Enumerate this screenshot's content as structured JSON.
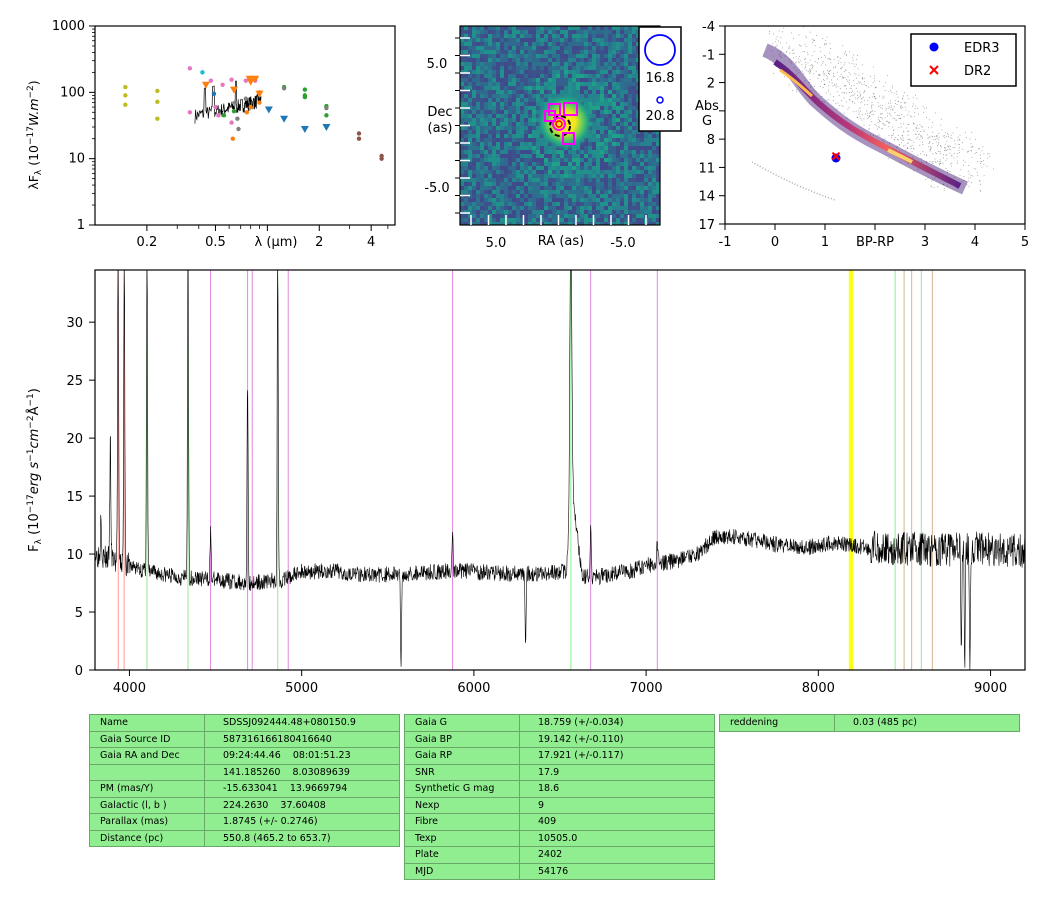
{
  "chart_data": [
    {
      "type": "scatter",
      "panel": "sed",
      "xlabel": "λ (μm)",
      "ylabel": "λF_λ (10^-17 W.m^-2)",
      "x_scale": "log",
      "y_scale": "log",
      "xlim": [
        0.1,
        5.5
      ],
      "ylim": [
        1,
        1000
      ],
      "x_ticks": [
        "0.2",
        "0.5",
        "2",
        "4"
      ],
      "y_ticks": [
        "1",
        "10",
        "100",
        "1000"
      ],
      "points": [
        {
          "x": 0.15,
          "y": 120,
          "c": "#bcbd22"
        },
        {
          "x": 0.15,
          "y": 90,
          "c": "#bcbd22"
        },
        {
          "x": 0.15,
          "y": 65,
          "c": "#bcbd22"
        },
        {
          "x": 0.23,
          "y": 105,
          "c": "#bcbd22"
        },
        {
          "x": 0.23,
          "y": 72,
          "c": "#bcbd22"
        },
        {
          "x": 0.23,
          "y": 40,
          "c": "#bcbd22"
        },
        {
          "x": 0.355,
          "y": 230,
          "c": "#e377c2"
        },
        {
          "x": 0.355,
          "y": 50,
          "c": "#e377c2"
        },
        {
          "x": 0.42,
          "y": 200,
          "c": "#17becf"
        },
        {
          "x": 0.47,
          "y": 150,
          "c": "#e377c2"
        },
        {
          "x": 0.49,
          "y": 95,
          "c": "#1f77b4"
        },
        {
          "x": 0.5,
          "y": 60,
          "c": "#e377c2"
        },
        {
          "x": 0.52,
          "y": 45,
          "c": "#e377c2"
        },
        {
          "x": 0.55,
          "y": 130,
          "c": "#e377c2"
        },
        {
          "x": 0.56,
          "y": 45,
          "c": "#2ca02c"
        },
        {
          "x": 0.62,
          "y": 155,
          "c": "#e377c2"
        },
        {
          "x": 0.62,
          "y": 35,
          "c": "#e377c2"
        },
        {
          "x": 0.63,
          "y": 20,
          "c": "#ff7f0e"
        },
        {
          "x": 0.64,
          "y": 52,
          "c": "#2ca02c"
        },
        {
          "x": 0.65,
          "y": 70,
          "c": "#7f7f7f"
        },
        {
          "x": 0.67,
          "y": 40,
          "c": "#7f7f7f"
        },
        {
          "x": 0.68,
          "y": 28,
          "c": "#7f7f7f"
        },
        {
          "x": 0.75,
          "y": 150,
          "c": "#e377c2"
        },
        {
          "x": 0.75,
          "y": 80,
          "c": "#7f7f7f"
        },
        {
          "x": 0.76,
          "y": 50,
          "c": "#ff7f0e"
        },
        {
          "x": 0.8,
          "y": 60,
          "c": "#ff7f0e"
        },
        {
          "x": 0.85,
          "y": 150,
          "c": "#e377c2"
        },
        {
          "x": 0.9,
          "y": 70,
          "c": "#ff7f0e"
        },
        {
          "x": 0.9,
          "y": 100,
          "c": "#ff7f0e"
        },
        {
          "x": 1.25,
          "y": 120,
          "c": "#2ca02c"
        },
        {
          "x": 1.25,
          "y": 115,
          "c": "#7f7f7f"
        },
        {
          "x": 1.65,
          "y": 110,
          "c": "#2ca02c"
        },
        {
          "x": 1.65,
          "y": 90,
          "c": "#2ca02c"
        },
        {
          "x": 1.65,
          "y": 85,
          "c": "#2ca02c"
        },
        {
          "x": 2.2,
          "y": 62,
          "c": "#2ca02c"
        },
        {
          "x": 2.2,
          "y": 58,
          "c": "#7f7f7f"
        },
        {
          "x": 2.2,
          "y": 45,
          "c": "#2ca02c"
        },
        {
          "x": 3.4,
          "y": 24,
          "c": "#8c564b"
        },
        {
          "x": 3.4,
          "y": 20,
          "c": "#8c564b"
        },
        {
          "x": 4.6,
          "y": 11,
          "c": "#8c564b"
        },
        {
          "x": 4.6,
          "y": 10,
          "c": "#8c564b"
        }
      ],
      "triangles": [
        {
          "x": 0.44,
          "y": 130,
          "c": "#ff7f0e"
        },
        {
          "x": 0.64,
          "y": 110,
          "c": "#ff7f0e"
        },
        {
          "x": 0.79,
          "y": 160,
          "c": "#ff7f0e"
        },
        {
          "x": 0.8,
          "y": 145,
          "c": "#ff7f0e"
        },
        {
          "x": 0.85,
          "y": 160,
          "c": "#ff7f0e"
        },
        {
          "x": 0.9,
          "y": 95,
          "c": "#ff7f0e"
        },
        {
          "x": 1.02,
          "y": 55,
          "c": "#1f77b4"
        },
        {
          "x": 1.25,
          "y": 40,
          "c": "#1f77b4"
        },
        {
          "x": 1.65,
          "y": 28,
          "c": "#1f77b4"
        },
        {
          "x": 2.2,
          "y": 30,
          "c": "#1f77b4"
        }
      ]
    },
    {
      "type": "heatmap",
      "panel": "image",
      "xlabel": "RA (as)",
      "ylabel": "Dec\n(as)",
      "x_ticks": [
        "5.0",
        "-5.0"
      ],
      "y_ticks": [
        "5.0",
        "-5.0"
      ],
      "legend_sizes": [
        "16.8",
        "20.8"
      ]
    },
    {
      "type": "scatter",
      "panel": "hr",
      "xlabel": "BP-RP",
      "ylabel": "Abs\nG",
      "xlim": [
        -1,
        5
      ],
      "ylim": [
        17,
        -4
      ],
      "x_ticks": [
        "-1",
        "0",
        "1",
        "BP-RP",
        "3",
        "4",
        "5"
      ],
      "y_ticks": [
        "-4",
        "-1",
        "2",
        "5",
        "8",
        "11",
        "14",
        "17"
      ],
      "series": [
        {
          "name": "EDR3",
          "x": [
            1.22
          ],
          "y": [
            10.0
          ],
          "color": "#0000ff"
        },
        {
          "name": "DR2",
          "x": [
            1.22
          ],
          "y": [
            9.8
          ],
          "color": "#ff0000"
        }
      ],
      "legend_position": "top-right"
    },
    {
      "type": "line",
      "panel": "spectrum",
      "xlabel": "",
      "ylabel": "F_λ (10^-17 erg s^-1 cm^-2 Å^-1)",
      "xlim": [
        3800,
        9200
      ],
      "ylim": [
        0,
        34.5
      ],
      "x_ticks": [
        "4000",
        "5000",
        "6000",
        "7000",
        "8000",
        "9000"
      ],
      "y_ticks": [
        "0",
        "5",
        "10",
        "15",
        "20",
        "25",
        "30"
      ],
      "continuum": [
        [
          3800,
          10
        ],
        [
          3900,
          9.5
        ],
        [
          4000,
          9
        ],
        [
          4100,
          8.5
        ],
        [
          4300,
          8.0
        ],
        [
          4500,
          7.8
        ],
        [
          4700,
          7.5
        ],
        [
          4900,
          7.8
        ],
        [
          5000,
          8.5
        ],
        [
          5200,
          8.5
        ],
        [
          5400,
          8.2
        ],
        [
          5600,
          8.3
        ],
        [
          5800,
          8.5
        ],
        [
          6000,
          8.5
        ],
        [
          6200,
          8.3
        ],
        [
          6400,
          8.3
        ],
        [
          6500,
          8.5
        ],
        [
          6600,
          8.2
        ],
        [
          6700,
          8.0
        ],
        [
          6900,
          8.5
        ],
        [
          7000,
          9.0
        ],
        [
          7200,
          9.5
        ],
        [
          7300,
          10.0
        ],
        [
          7400,
          11.5
        ],
        [
          7500,
          11.5
        ],
        [
          7700,
          11.0
        ],
        [
          7900,
          10.5
        ],
        [
          8100,
          11.0
        ],
        [
          8300,
          10.5
        ],
        [
          8500,
          10.5
        ],
        [
          8700,
          10.3
        ],
        [
          8900,
          10.5
        ],
        [
          9200,
          10.2
        ]
      ],
      "emission_lines": [
        [
          3835,
          14
        ],
        [
          3889,
          20
        ],
        [
          3934,
          36
        ],
        [
          3970,
          36
        ],
        [
          4102,
          36
        ],
        [
          4340,
          36
        ],
        [
          4471,
          12
        ],
        [
          4686,
          25
        ],
        [
          4861,
          36
        ],
        [
          5876,
          12
        ],
        [
          6563,
          34
        ],
        [
          6678,
          12
        ],
        [
          7065,
          11
        ],
        [
          5577,
          0
        ],
        [
          6300,
          2.7
        ],
        [
          8850,
          0.8
        ],
        [
          8880,
          0.5
        ],
        [
          8830,
          1.2
        ]
      ],
      "marker_lines": [
        {
          "x": 3935,
          "c": "#ff9a9a"
        },
        {
          "x": 3969,
          "c": "#ff9a9a"
        },
        {
          "x": 4102,
          "c": "#90ee90"
        },
        {
          "x": 4340,
          "c": "#90ee90"
        },
        {
          "x": 4471,
          "c": "#e08ae0"
        },
        {
          "x": 4686,
          "c": "#e08ae0"
        },
        {
          "x": 4713,
          "c": "#e08ae0"
        },
        {
          "x": 4861,
          "c": "#90ee90"
        },
        {
          "x": 4922,
          "c": "#e08ae0"
        },
        {
          "x": 5876,
          "c": "#e08ae0"
        },
        {
          "x": 6563,
          "c": "#90ee90"
        },
        {
          "x": 6678,
          "c": "#e08ae0"
        },
        {
          "x": 7065,
          "c": "#e08ae0"
        },
        {
          "x": 8183,
          "c": "#ffff00"
        },
        {
          "x": 8195,
          "c": "#ffff00"
        },
        {
          "x": 8446,
          "c": "#90ee90"
        },
        {
          "x": 8498,
          "c": "#d2b48c"
        },
        {
          "x": 8542,
          "c": "#d2b48c"
        },
        {
          "x": 8598,
          "c": "#90ee90"
        },
        {
          "x": 8662,
          "c": "#d2b48c"
        }
      ]
    }
  ],
  "tables": {
    "t1": [
      [
        "Name",
        "SDSSJ092444.48+080150.9"
      ],
      [
        "Gaia Source ID",
        "587316166180416640"
      ],
      [
        "Gaia RA and Dec",
        "09:24:44.46    08:01:51.23"
      ],
      [
        "",
        "141.185260    8.03089639"
      ],
      [
        "PM (mas/Y)",
        "-15.633041    13.9669794"
      ],
      [
        "Galactic (l, b )",
        "224.2630    37.60408"
      ],
      [
        "Parallax (mas)",
        "1.8745 (+/- 0.2746)"
      ],
      [
        "Distance (pc)",
        "550.8 (465.2 to 653.7)"
      ]
    ],
    "t2": [
      [
        "Gaia G",
        "18.759 (+/-0.034)"
      ],
      [
        "Gaia BP",
        "19.142 (+/-0.110)"
      ],
      [
        "Gaia RP",
        "17.921 (+/-0.117)"
      ],
      [
        "SNR",
        "17.9"
      ],
      [
        "Synthetic G mag",
        "18.6"
      ],
      [
        "Nexp",
        "9"
      ],
      [
        "Fibre",
        "409"
      ],
      [
        "Texp",
        "10505.0"
      ],
      [
        "Plate",
        "2402"
      ],
      [
        "MJD",
        "54176"
      ]
    ],
    "t3": [
      [
        "reddening",
        "0.03 (485 pc)"
      ]
    ]
  }
}
